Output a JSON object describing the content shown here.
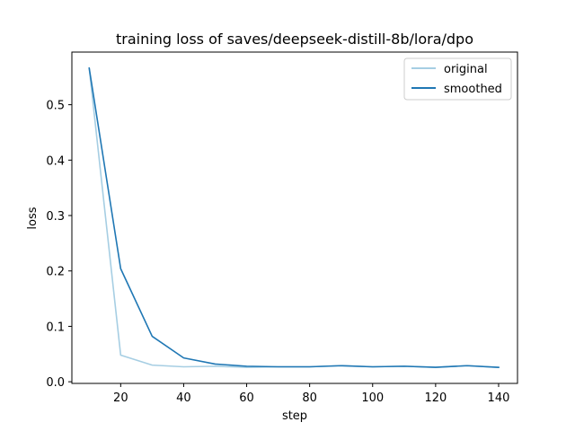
{
  "chart_data": {
    "type": "line",
    "title": "training loss of saves/deepseek-distill-8b/lora/dpo",
    "xlabel": "step",
    "ylabel": "loss",
    "xlim": [
      4.5,
      146
    ],
    "ylim": [
      -0.003,
      0.595
    ],
    "x_ticks": [
      20,
      40,
      60,
      80,
      100,
      120,
      140
    ],
    "y_ticks": [
      0.0,
      0.1,
      0.2,
      0.3,
      0.4,
      0.5
    ],
    "y_tick_labels": [
      "0.0",
      "0.1",
      "0.2",
      "0.3",
      "0.4",
      "0.5"
    ],
    "x": [
      10,
      20,
      30,
      40,
      50,
      60,
      70,
      80,
      90,
      100,
      110,
      120,
      130,
      140
    ],
    "series": [
      {
        "name": "original",
        "color": "#a6cee3",
        "values": [
          0.566,
          0.048,
          0.03,
          0.027,
          0.028,
          0.026,
          0.027,
          0.027,
          0.029,
          0.027,
          0.028,
          0.026,
          0.029,
          0.026
        ]
      },
      {
        "name": "smoothed",
        "color": "#1f77b4",
        "values": [
          0.566,
          0.204,
          0.082,
          0.043,
          0.032,
          0.028,
          0.027,
          0.027,
          0.029,
          0.027,
          0.028,
          0.026,
          0.029,
          0.026
        ]
      }
    ],
    "grid": false,
    "legend": "top-right"
  }
}
